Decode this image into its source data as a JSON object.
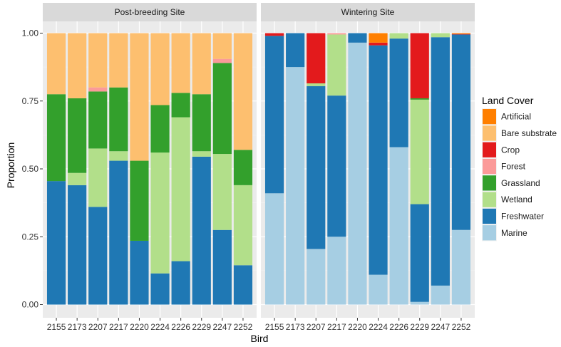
{
  "chart_data": {
    "type": "bar",
    "stacked": true,
    "xlabel": "Bird",
    "ylabel": "Proportion",
    "ylim": [
      0,
      1
    ],
    "yticks": [
      0.0,
      0.25,
      0.5,
      0.75,
      1.0
    ],
    "ytick_labels": [
      "0.00",
      "0.25",
      "0.50",
      "0.75",
      "1.00"
    ],
    "legend": {
      "title": "Land Cover",
      "placement": "right"
    },
    "series": [
      {
        "name": "Marine",
        "color": "#a6cee3"
      },
      {
        "name": "Freshwater",
        "color": "#1f78b4"
      },
      {
        "name": "Wetland",
        "color": "#b2df8a"
      },
      {
        "name": "Grassland",
        "color": "#33a02c"
      },
      {
        "name": "Forest",
        "color": "#fb9a99"
      },
      {
        "name": "Crop",
        "color": "#e31a1c"
      },
      {
        "name": "Bare substrate",
        "color": "#fdbf6f"
      },
      {
        "name": "Artificial",
        "color": "#ff7f00"
      }
    ],
    "legend_order": [
      "Artificial",
      "Bare substrate",
      "Crop",
      "Forest",
      "Grassland",
      "Wetland",
      "Freshwater",
      "Marine"
    ],
    "panels": [
      {
        "title": "Post-breeding Site",
        "categories": [
          "2155",
          "2173",
          "2207",
          "2217",
          "2220",
          "2224",
          "2226",
          "2229",
          "2247",
          "2252"
        ],
        "values": {
          "Marine": [
            0,
            0,
            0,
            0,
            0,
            0,
            0,
            0,
            0,
            0
          ],
          "Freshwater": [
            0.455,
            0.44,
            0.36,
            0.53,
            0.235,
            0.115,
            0.16,
            0.545,
            0.275,
            0.145
          ],
          "Wetland": [
            0,
            0.045,
            0.215,
            0.035,
            0,
            0.445,
            0.53,
            0.02,
            0.28,
            0.295
          ],
          "Grassland": [
            0.32,
            0.275,
            0.21,
            0.235,
            0.295,
            0.175,
            0.09,
            0.21,
            0.335,
            0.13
          ],
          "Forest": [
            0,
            0,
            0.015,
            0,
            0,
            0,
            0,
            0,
            0.015,
            0
          ],
          "Crop": [
            0,
            0,
            0,
            0,
            0,
            0,
            0,
            0,
            0,
            0
          ],
          "Bare substrate": [
            0.225,
            0.24,
            0.2,
            0.2,
            0.47,
            0.265,
            0.22,
            0.225,
            0.095,
            0.43
          ],
          "Artificial": [
            0,
            0,
            0,
            0,
            0,
            0,
            0,
            0,
            0,
            0
          ]
        }
      },
      {
        "title": "Wintering Site",
        "categories": [
          "2155",
          "2173",
          "2207",
          "2217",
          "2220",
          "2224",
          "2226",
          "2229",
          "2247",
          "2252"
        ],
        "values": {
          "Marine": [
            0.41,
            0.875,
            0.205,
            0.25,
            0.965,
            0.11,
            0.58,
            0.01,
            0.07,
            0.275
          ],
          "Freshwater": [
            0.58,
            0.125,
            0.6,
            0.52,
            0.035,
            0.845,
            0.4,
            0.36,
            0.915,
            0.72
          ],
          "Wetland": [
            0,
            0,
            0.01,
            0.225,
            0,
            0,
            0.02,
            0.385,
            0.015,
            0
          ],
          "Grassland": [
            0,
            0,
            0,
            0,
            0,
            0,
            0,
            0.005,
            0,
            0
          ],
          "Forest": [
            0,
            0,
            0,
            0.005,
            0,
            0,
            0,
            0,
            0,
            0
          ],
          "Crop": [
            0.01,
            0,
            0.185,
            0,
            0,
            0.01,
            0,
            0.24,
            0,
            0.002
          ],
          "Bare substrate": [
            0,
            0,
            0,
            0,
            0,
            0,
            0,
            0,
            0,
            0
          ],
          "Artificial": [
            0,
            0,
            0,
            0,
            0,
            0.035,
            0,
            0,
            0,
            0.003
          ]
        }
      }
    ]
  }
}
